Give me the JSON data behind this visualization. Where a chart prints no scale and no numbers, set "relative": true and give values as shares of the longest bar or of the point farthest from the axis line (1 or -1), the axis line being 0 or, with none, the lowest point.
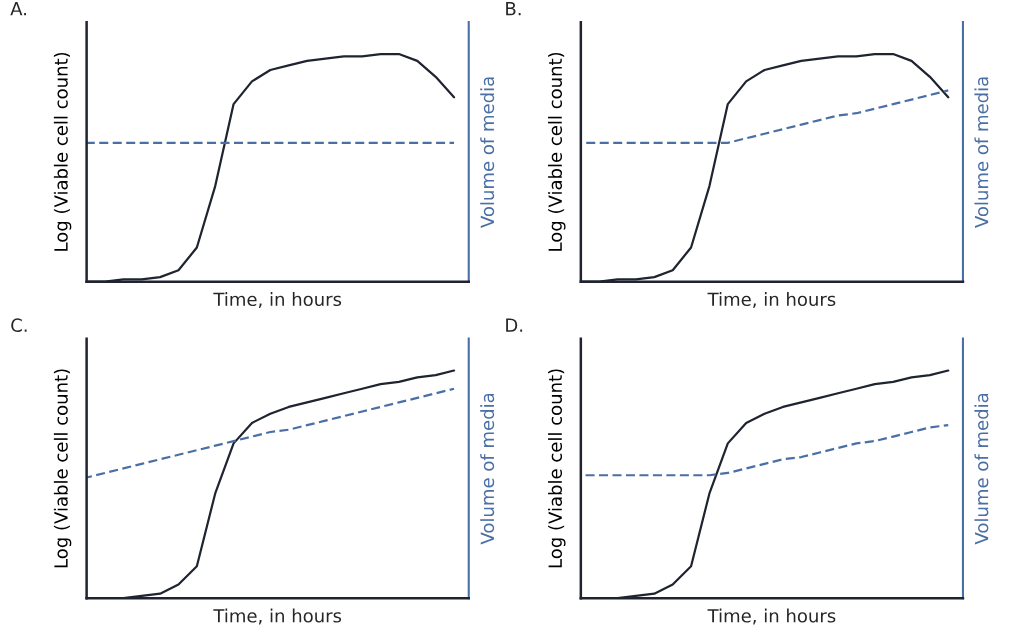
{
  "chart_data": [
    {
      "type": "line",
      "title": "A.",
      "xlabel": "Time, in hours",
      "ylabel": "Log (Viable cell count)",
      "y2label": "Volume of media",
      "relative": true,
      "categories": [
        null,
        null,
        null,
        null,
        null,
        null,
        null,
        null,
        null,
        null,
        null,
        null,
        null,
        null,
        null,
        null,
        null,
        null,
        null,
        null,
        null
      ],
      "series": [
        {
          "color": "#1f2430",
          "line_style": "solid",
          "values": [
            0,
            0,
            0.01,
            0.01,
            0.02,
            0.05,
            0.15,
            0.42,
            0.78,
            0.88,
            0.93,
            0.95,
            0.97,
            0.98,
            0.99,
            0.99,
            1.0,
            1.0,
            0.97,
            0.9,
            0.81
          ]
        },
        {
          "color": "#4a6fa5",
          "line_style": "dashed",
          "values": [
            0.61,
            0.61,
            0.61,
            0.61,
            0.61,
            0.61,
            0.61,
            0.61,
            0.61,
            0.61,
            0.61,
            0.61,
            0.61,
            0.61,
            0.61,
            0.61,
            0.61,
            0.61,
            0.61,
            0.61,
            0.61
          ]
        }
      ]
    },
    {
      "type": "line",
      "title": "B.",
      "xlabel": "Time, in hours",
      "ylabel": "Log (Viable cell count)",
      "y2label": "Volume of media",
      "relative": true,
      "categories": [
        null,
        null,
        null,
        null,
        null,
        null,
        null,
        null,
        null,
        null,
        null,
        null,
        null,
        null,
        null,
        null,
        null,
        null,
        null,
        null,
        null
      ],
      "series": [
        {
          "color": "#1f2430",
          "line_style": "solid",
          "values": [
            0,
            0,
            0.01,
            0.01,
            0.02,
            0.05,
            0.15,
            0.42,
            0.78,
            0.88,
            0.93,
            0.95,
            0.97,
            0.98,
            0.99,
            0.99,
            1.0,
            1.0,
            0.97,
            0.9,
            0.81
          ]
        },
        {
          "color": "#4a6fa5",
          "line_style": "dashed",
          "values": [
            0.61,
            0.61,
            0.61,
            0.61,
            0.61,
            0.61,
            0.61,
            0.61,
            0.61,
            0.63,
            0.65,
            0.67,
            0.69,
            0.71,
            0.73,
            0.74,
            0.76,
            0.78,
            0.8,
            0.82,
            0.84
          ]
        }
      ]
    },
    {
      "type": "line",
      "title": "C.",
      "xlabel": "Time, in hours",
      "ylabel": "Log (Viable cell count)",
      "y2label": "Volume of media",
      "relative": true,
      "categories": [
        null,
        null,
        null,
        null,
        null,
        null,
        null,
        null,
        null,
        null,
        null,
        null,
        null,
        null,
        null,
        null,
        null,
        null,
        null,
        null,
        null
      ],
      "series": [
        {
          "color": "#1f2430",
          "line_style": "solid",
          "values": [
            0,
            0,
            0,
            0.01,
            0.02,
            0.06,
            0.14,
            0.46,
            0.68,
            0.77,
            0.81,
            0.84,
            0.86,
            0.88,
            0.9,
            0.92,
            0.94,
            0.95,
            0.97,
            0.98,
            1.0
          ]
        },
        {
          "color": "#4a6fa5",
          "line_style": "dashed",
          "values": [
            0.53,
            0.55,
            0.57,
            0.59,
            0.61,
            0.63,
            0.65,
            0.67,
            0.69,
            0.71,
            0.73,
            0.74,
            0.76,
            0.78,
            0.8,
            0.82,
            0.84,
            0.86,
            0.88,
            0.9,
            0.92
          ]
        }
      ]
    },
    {
      "type": "line",
      "title": "D.",
      "xlabel": "Time, in hours",
      "ylabel": "Log (Viable cell count)",
      "y2label": "Volume of media",
      "relative": true,
      "categories": [
        null,
        null,
        null,
        null,
        null,
        null,
        null,
        null,
        null,
        null,
        null,
        null,
        null,
        null,
        null,
        null,
        null,
        null,
        null,
        null,
        null
      ],
      "series": [
        {
          "color": "#1f2430",
          "line_style": "solid",
          "values": [
            0,
            0,
            0,
            0.01,
            0.02,
            0.06,
            0.14,
            0.46,
            0.68,
            0.77,
            0.81,
            0.84,
            0.86,
            0.88,
            0.9,
            0.92,
            0.94,
            0.95,
            0.97,
            0.98,
            1.0
          ]
        },
        {
          "color": "#4a6fa5",
          "line_style": "dashed",
          "values": [
            0.54,
            0.54,
            0.54,
            0.54,
            0.54,
            0.54,
            0.54,
            0.54,
            0.55,
            0.57,
            0.59,
            0.61,
            0.62,
            0.64,
            0.66,
            0.68,
            0.69,
            0.71,
            0.73,
            0.75,
            0.76
          ]
        }
      ]
    }
  ]
}
